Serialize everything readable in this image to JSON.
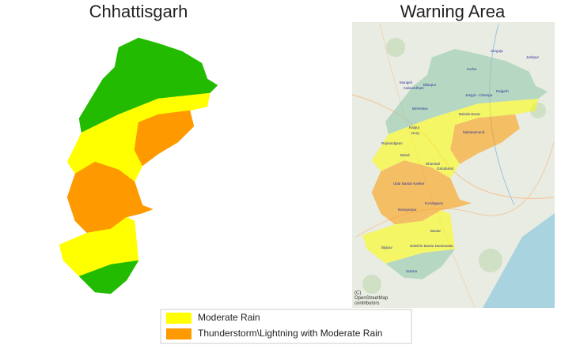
{
  "left_map": {
    "title": "Chhattisgarh"
  },
  "right_map": {
    "title": "Warning Area",
    "labels": [
      "Surguja",
      "Jashpur",
      "Korba",
      "Mungeli",
      "Kabeerdham",
      "Bilaspur",
      "Janjgir - Champa",
      "Raigarh",
      "Bemetara",
      "Baloda Bazar",
      "Raipur",
      "Durg",
      "Mahasamund",
      "Rajnandgaon",
      "Balod",
      "Dhamtari",
      "Gariaband",
      "Uttar Bastar Kanker",
      "Kondagaon",
      "Narayanpur",
      "Bastar",
      "Bijapur",
      "Dakshin Bastar Dantewada",
      "Sukma"
    ],
    "attribution": [
      "(C)",
      "OpenStreetMap",
      "contributors"
    ]
  },
  "legend": {
    "items": [
      {
        "label": "Moderate Rain",
        "color": "#ffff00"
      },
      {
        "label": "Thunderstorm\\Lightning with Moderate Rain",
        "color": "#ff9900"
      }
    ]
  }
}
